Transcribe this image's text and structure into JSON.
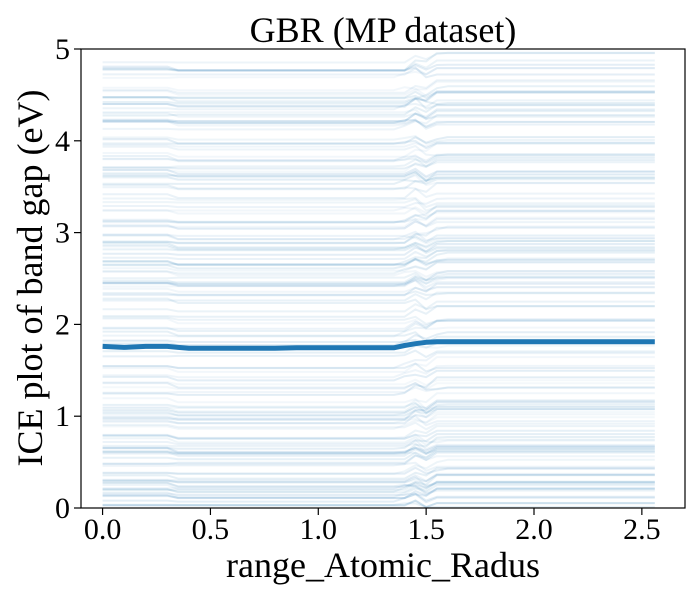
{
  "chart_data": {
    "type": "line",
    "title": "GBR (MP dataset)",
    "xlabel": "range_Atomic_Radus",
    "ylabel": "ICE plot of band gap (eV)",
    "xlim": [
      -0.1,
      2.7
    ],
    "ylim": [
      0,
      5
    ],
    "xticks": [
      0.0,
      0.5,
      1.0,
      1.5,
      2.0,
      2.5
    ],
    "xtick_labels": [
      "0.0",
      "0.5",
      "1.0",
      "1.5",
      "2.0",
      "2.5"
    ],
    "yticks": [
      0,
      1,
      2,
      3,
      4,
      5
    ],
    "ytick_labels": [
      "0",
      "1",
      "2",
      "3",
      "4",
      "5"
    ],
    "grid": false,
    "colors": {
      "ice": "#1f77b4",
      "average": "#1f77b4"
    },
    "x": [
      0.0,
      0.1,
      0.2,
      0.3,
      0.35,
      0.4,
      0.5,
      0.6,
      0.7,
      0.8,
      0.9,
      1.0,
      1.1,
      1.2,
      1.3,
      1.35,
      1.4,
      1.45,
      1.5,
      1.55,
      1.6,
      1.8,
      2.0,
      2.2,
      2.4,
      2.56
    ],
    "series": [
      {
        "role": "average",
        "values": [
          1.76,
          1.75,
          1.76,
          1.76,
          1.75,
          1.74,
          1.74,
          1.74,
          1.74,
          1.74,
          1.745,
          1.745,
          1.745,
          1.745,
          1.745,
          1.745,
          1.77,
          1.79,
          1.805,
          1.81,
          1.81,
          1.81,
          1.81,
          1.81,
          1.81,
          1.81
        ]
      }
    ],
    "ice_curves": {
      "count": 170,
      "y_range_at_x0": [
        0.02,
        4.97
      ],
      "shift_near_x0_35": 0.02,
      "jump_x_range": [
        1.38,
        1.56
      ],
      "mean_jump": 0.07
    }
  }
}
